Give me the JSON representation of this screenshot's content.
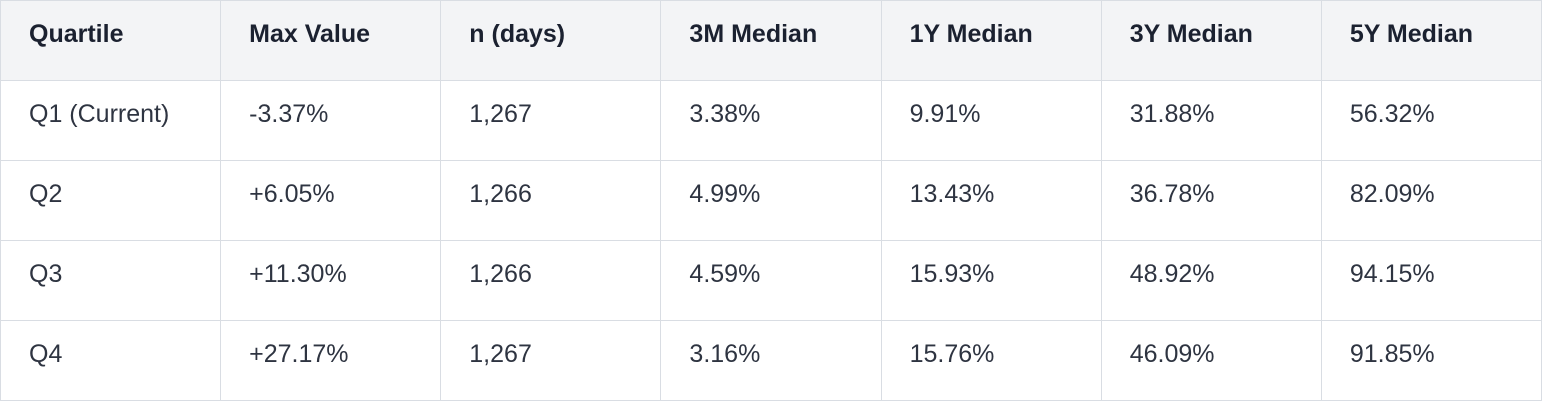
{
  "table": {
    "header": [
      "Quartile",
      "Max Value",
      "n (days)",
      "3M Median",
      "1Y Median",
      "3Y Median",
      "5Y Median"
    ],
    "rows": [
      [
        "Q1 (Current)",
        "-3.37%",
        "1,267",
        "3.38%",
        "9.91%",
        "31.88%",
        "56.32%"
      ],
      [
        "Q2",
        "+6.05%",
        "1,266",
        "4.99%",
        "13.43%",
        "36.78%",
        "82.09%"
      ],
      [
        "Q3",
        "+11.30%",
        "1,266",
        "4.59%",
        "15.93%",
        "48.92%",
        "94.15%"
      ],
      [
        "Q4",
        "+27.17%",
        "1,267",
        "3.16%",
        "15.76%",
        "46.09%",
        "91.85%"
      ]
    ]
  }
}
